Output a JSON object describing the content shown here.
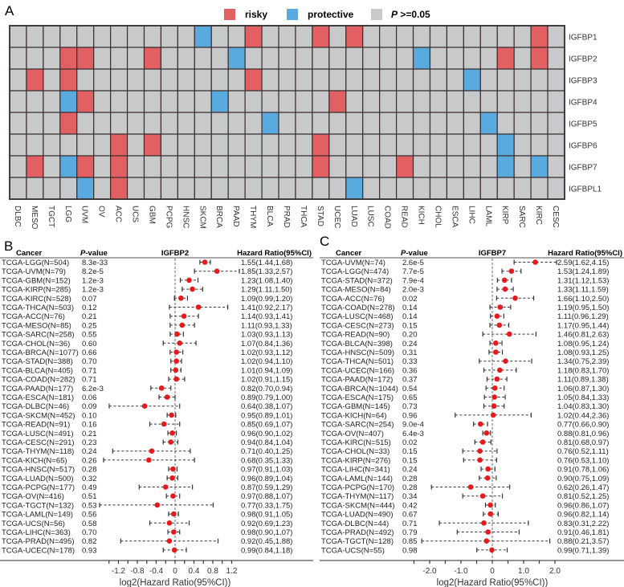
{
  "panel_labels": {
    "a": "A",
    "b": "B",
    "c": "C"
  },
  "legend": {
    "risky": "risky",
    "protective": "protective",
    "ns_p": "P",
    "ns_rest": " >=0.05"
  },
  "colors": {
    "risky": "#e36062",
    "protective": "#58aadf",
    "ns": "#c8c9cb",
    "grid": "#3a3030",
    "dot": "#e8191c"
  },
  "chart_data": [
    {
      "type": "heatmap",
      "columns": [
        "DLBC",
        "MESO",
        "TGCT",
        "LGG",
        "UVM",
        "OV",
        "ACC",
        "UCS",
        "GBM",
        "PCPG",
        "HNSC",
        "SKCM",
        "BRCA",
        "PAAD",
        "THYM",
        "BLCA",
        "PRAD",
        "THCA",
        "STAD",
        "UCEC",
        "LUAD",
        "LUSC",
        "COAD",
        "READ",
        "KICH",
        "CHOL",
        "ESCA",
        "LIHC",
        "LAML",
        "KIRP",
        "SARC",
        "KIRC",
        "CESC"
      ],
      "rows": [
        {
          "gene": "IGFBP1",
          "risky": [
            "THYM",
            "STAD",
            "LUAD",
            "KIRC"
          ],
          "protective": [
            "SKCM"
          ]
        },
        {
          "gene": "IGFBP2",
          "risky": [
            "LGG",
            "UVM",
            "GBM",
            "KIRP",
            "KIRC"
          ],
          "protective": [
            "PAAD",
            "KICH"
          ]
        },
        {
          "gene": "IGFBP3",
          "risky": [
            "MESO",
            "LGG",
            "THYM"
          ],
          "protective": [
            "LIHC"
          ]
        },
        {
          "gene": "IGFBP4",
          "risky": [
            "UVM",
            "UCEC"
          ],
          "protective": [
            "LGG",
            "BRCA"
          ]
        },
        {
          "gene": "IGFBP5",
          "risky": [
            "LGG"
          ],
          "protective": [
            "BLCA",
            "LAML"
          ]
        },
        {
          "gene": "IGFBP6",
          "risky": [
            "ACC",
            "GBM",
            "STAD"
          ],
          "protective": [
            "KIRP"
          ]
        },
        {
          "gene": "IGFBP7",
          "risky": [
            "MESO",
            "UVM",
            "ACC",
            "STAD",
            "READ"
          ],
          "protective": [
            "LGG",
            "KIRP",
            "KIRC"
          ]
        },
        {
          "gene": "IGFBPL1",
          "risky": [
            "ACC"
          ],
          "protective": [
            "UVM",
            "LUAD"
          ]
        }
      ]
    },
    {
      "type": "forest",
      "title": "IGFBP2",
      "headers": {
        "cancer": "Cancer",
        "p_italic": "P",
        "p_rest": "-value",
        "hr": "Hazard Ratio(95%CI)"
      },
      "xlabel": "log2(Hazard Ratio(95%CI))",
      "xticks": [
        "-1.2",
        "-0.8",
        "-0.4",
        "0",
        "0.4",
        "0.8",
        "1.2"
      ],
      "rows": [
        {
          "cancer": "TCGA-LGG(N=504)",
          "p": "8.3e-33",
          "hr": 1.55,
          "lo": 1.44,
          "hi": 1.68,
          "hr_text": "1.55(1.44,1.68)"
        },
        {
          "cancer": "TCGA-UVM(N=79)",
          "p": "8.2e-5",
          "hr": 1.85,
          "lo": 1.33,
          "hi": 2.57,
          "hr_text": "1.85(1.33,2.57)"
        },
        {
          "cancer": "TCGA-GBM(N=152)",
          "p": "1.2e-3",
          "hr": 1.23,
          "lo": 1.08,
          "hi": 1.4,
          "hr_text": "1.23(1.08,1.40)"
        },
        {
          "cancer": "TCGA-KIRP(N=285)",
          "p": "1.2e-3",
          "hr": 1.29,
          "lo": 1.11,
          "hi": 1.5,
          "hr_text": "1.29(1.11,1.50)"
        },
        {
          "cancer": "TCGA-KIRC(N=528)",
          "p": "0.07",
          "hr": 1.09,
          "lo": 0.99,
          "hi": 1.2,
          "hr_text": "1.09(0.99,1.20)"
        },
        {
          "cancer": "TCGA-THCA(N=503)",
          "p": "0.12",
          "hr": 1.41,
          "lo": 0.92,
          "hi": 2.17,
          "hr_text": "1.41(0.92,2.17)"
        },
        {
          "cancer": "TCGA-ACC(N=76)",
          "p": "0.21",
          "hr": 1.14,
          "lo": 0.93,
          "hi": 1.41,
          "hr_text": "1.14(0.93,1.41)"
        },
        {
          "cancer": "TCGA-MESO(N=85)",
          "p": "0.25",
          "hr": 1.11,
          "lo": 0.93,
          "hi": 1.33,
          "hr_text": "1.11(0.93,1.33)"
        },
        {
          "cancer": "TCGA-SARC(N=258)",
          "p": "0.55",
          "hr": 1.03,
          "lo": 0.93,
          "hi": 1.13,
          "hr_text": "1.03(0.93,1.13)"
        },
        {
          "cancer": "TCGA-CHOL(N=36)",
          "p": "0.60",
          "hr": 1.07,
          "lo": 0.84,
          "hi": 1.36,
          "hr_text": "1.07(0.84,1.36)"
        },
        {
          "cancer": "TCGA-BRCA(N=1077)",
          "p": "0.66",
          "hr": 1.02,
          "lo": 0.93,
          "hi": 1.12,
          "hr_text": "1.02(0.93,1.12)"
        },
        {
          "cancer": "TCGA-STAD(N=388)",
          "p": "0.70",
          "hr": 1.02,
          "lo": 0.94,
          "hi": 1.1,
          "hr_text": "1.02(0.94,1.10)"
        },
        {
          "cancer": "TCGA-BLCA(N=405)",
          "p": "0.71",
          "hr": 1.01,
          "lo": 0.94,
          "hi": 1.09,
          "hr_text": "1.01(0.94,1.09)"
        },
        {
          "cancer": "TCGA-COAD(N=282)",
          "p": "0.71",
          "hr": 1.02,
          "lo": 0.91,
          "hi": 1.15,
          "hr_text": "1.02(0.91,1.15)"
        },
        {
          "cancer": "TCGA-PAAD(N=177)",
          "p": "6.2e-3",
          "hr": 0.82,
          "lo": 0.7,
          "hi": 0.94,
          "hr_text": "0.82(0.70,0.94)"
        },
        {
          "cancer": "TCGA-ESCA(N=181)",
          "p": "0.06",
          "hr": 0.89,
          "lo": 0.79,
          "hi": 1.0,
          "hr_text": "0.89(0.79,1.00)"
        },
        {
          "cancer": "TCGA-DLBC(N=46)",
          "p": "0.09",
          "hr": 0.64,
          "lo": 0.38,
          "hi": 1.07,
          "hr_text": "0.64(0.38,1.07)"
        },
        {
          "cancer": "TCGA-SKCM(N=452)",
          "p": "0.10",
          "hr": 0.95,
          "lo": 0.89,
          "hi": 1.01,
          "hr_text": "0.95(0.89,1.01)"
        },
        {
          "cancer": "TCGA-READ(N=91)",
          "p": "0.16",
          "hr": 0.85,
          "lo": 0.69,
          "hi": 1.07,
          "hr_text": "0.85(0.69,1.07)"
        },
        {
          "cancer": "TCGA-LUSC(N=491)",
          "p": "0.21",
          "hr": 0.96,
          "lo": 0.9,
          "hi": 1.02,
          "hr_text": "0.96(0.90,1.02)"
        },
        {
          "cancer": "TCGA-CESC(N=291)",
          "p": "0.23",
          "hr": 0.94,
          "lo": 0.84,
          "hi": 1.04,
          "hr_text": "0.94(0.84,1.04)"
        },
        {
          "cancer": "TCGA-THYM(N=118)",
          "p": "0.24",
          "hr": 0.71,
          "lo": 0.4,
          "hi": 1.25,
          "hr_text": "0.71(0.40,1.25)"
        },
        {
          "cancer": "TCGA-KICH(N=65)",
          "p": "0.26",
          "hr": 0.68,
          "lo": 0.35,
          "hi": 1.33,
          "hr_text": "0.68(0.35,1.33)"
        },
        {
          "cancer": "TCGA-HNSC(N=517)",
          "p": "0.28",
          "hr": 0.97,
          "lo": 0.91,
          "hi": 1.03,
          "hr_text": "0.97(0.91,1.03)"
        },
        {
          "cancer": "TCGA-LUAD(N=500)",
          "p": "0.32",
          "hr": 0.96,
          "lo": 0.89,
          "hi": 1.04,
          "hr_text": "0.96(0.89,1.04)"
        },
        {
          "cancer": "TCGA-PCPG(N=177)",
          "p": "0.49",
          "hr": 0.87,
          "lo": 0.59,
          "hi": 1.29,
          "hr_text": "0.87(0.59,1.29)"
        },
        {
          "cancer": "TCGA-OV(N=416)",
          "p": "0.51",
          "hr": 0.97,
          "lo": 0.88,
          "hi": 1.07,
          "hr_text": "0.97(0.88,1.07)"
        },
        {
          "cancer": "TCGA-TGCT(N=132)",
          "p": "0.53",
          "hr": 0.77,
          "lo": 0.33,
          "hi": 1.75,
          "hr_text": "0.77(0.33,1.75)"
        },
        {
          "cancer": "TCGA-LAML(N=149)",
          "p": "0.56",
          "hr": 0.98,
          "lo": 0.91,
          "hi": 1.05,
          "hr_text": "0.98(0.91,1.05)"
        },
        {
          "cancer": "TCGA-UCS(N=56)",
          "p": "0.58",
          "hr": 0.92,
          "lo": 0.69,
          "hi": 1.23,
          "hr_text": "0.92(0.69,1.23)"
        },
        {
          "cancer": "TCGA-LIHC(N=363)",
          "p": "0.70",
          "hr": 0.98,
          "lo": 0.9,
          "hi": 1.07,
          "hr_text": "0.98(0.90,1.07)"
        },
        {
          "cancer": "TCGA-PRAD(N=495)",
          "p": "0.82",
          "hr": 0.92,
          "lo": 0.45,
          "hi": 1.88,
          "hr_text": "0.92(0.45,1.88)"
        },
        {
          "cancer": "TCGA-UCEC(N=178)",
          "p": "0.93",
          "hr": 0.99,
          "lo": 0.84,
          "hi": 1.18,
          "hr_text": "0.99(0.84,1.18)"
        }
      ]
    },
    {
      "type": "forest",
      "title": "IGFBP7",
      "headers": {
        "cancer": "Cancer",
        "p_italic": "P",
        "p_rest": "-value",
        "hr": "Hazard Ratio(95%CI)"
      },
      "xlabel": "log2(Hazard Ratio(95%CI))",
      "xticks": [
        "-2.0",
        "-1.0",
        "0",
        "1.0",
        "2.0"
      ],
      "rows": [
        {
          "cancer": "TCGA-UVM(N=74)",
          "p": "2.6e-5",
          "hr": 2.59,
          "lo": 1.62,
          "hi": 4.15,
          "hr_text": "2.59(1.62,4.15)"
        },
        {
          "cancer": "TCGA-LGG(N=474)",
          "p": "7.7e-5",
          "hr": 1.53,
          "lo": 1.24,
          "hi": 1.89,
          "hr_text": "1.53(1.24,1.89)"
        },
        {
          "cancer": "TCGA-STAD(N=372)",
          "p": "7.9e-4",
          "hr": 1.31,
          "lo": 1.12,
          "hi": 1.53,
          "hr_text": "1.31(1.12,1.53)"
        },
        {
          "cancer": "TCGA-MESO(N=84)",
          "p": "2.0e-3",
          "hr": 1.33,
          "lo": 1.11,
          "hi": 1.59,
          "hr_text": "1.33(1.11,1.59)"
        },
        {
          "cancer": "TCGA-ACC(N=76)",
          "p": "0.02",
          "hr": 1.66,
          "lo": 1.1,
          "hi": 2.5,
          "hr_text": "1.66(1.10,2.50)"
        },
        {
          "cancer": "TCGA-COAD(N=278)",
          "p": "0.14",
          "hr": 1.19,
          "lo": 0.95,
          "hi": 1.5,
          "hr_text": "1.19(0.95,1.50)"
        },
        {
          "cancer": "TCGA-LUSC(N=468)",
          "p": "0.14",
          "hr": 1.11,
          "lo": 0.96,
          "hi": 1.29,
          "hr_text": "1.11(0.96,1.29)"
        },
        {
          "cancer": "TCGA-CESC(N=273)",
          "p": "0.15",
          "hr": 1.17,
          "lo": 0.95,
          "hi": 1.44,
          "hr_text": "1.17(0.95,1.44)"
        },
        {
          "cancer": "TCGA-READ(N=90)",
          "p": "0.20",
          "hr": 1.46,
          "lo": 0.81,
          "hi": 2.63,
          "hr_text": "1.46(0.81,2.63)"
        },
        {
          "cancer": "TCGA-BLCA(N=398)",
          "p": "0.24",
          "hr": 1.08,
          "lo": 0.95,
          "hi": 1.24,
          "hr_text": "1.08(0.95,1.24)"
        },
        {
          "cancer": "TCGA-HNSC(N=509)",
          "p": "0.31",
          "hr": 1.08,
          "lo": 0.93,
          "hi": 1.25,
          "hr_text": "1.08(0.93,1.25)"
        },
        {
          "cancer": "TCGA-THCA(N=501)",
          "p": "0.33",
          "hr": 1.34,
          "lo": 0.75,
          "hi": 2.39,
          "hr_text": "1.34(0.75,2.39)"
        },
        {
          "cancer": "TCGA-UCEC(N=166)",
          "p": "0.36",
          "hr": 1.18,
          "lo": 0.83,
          "hi": 1.7,
          "hr_text": "1.18(0.83,1.70)"
        },
        {
          "cancer": "TCGA-PAAD(N=172)",
          "p": "0.37",
          "hr": 1.11,
          "lo": 0.89,
          "hi": 1.38,
          "hr_text": "1.11(0.89,1.38)"
        },
        {
          "cancer": "TCGA-BRCA(N=1044)",
          "p": "0.54",
          "hr": 1.06,
          "lo": 0.87,
          "hi": 1.3,
          "hr_text": "1.06(0.87,1.30)"
        },
        {
          "cancer": "TCGA-ESCA(N=175)",
          "p": "0.65",
          "hr": 1.05,
          "lo": 0.84,
          "hi": 1.33,
          "hr_text": "1.05(0.84,1.33)"
        },
        {
          "cancer": "TCGA-GBM(N=145)",
          "p": "0.73",
          "hr": 1.04,
          "lo": 0.83,
          "hi": 1.3,
          "hr_text": "1.04(0.83,1.30)"
        },
        {
          "cancer": "TCGA-KICH(N=64)",
          "p": "0.96",
          "hr": 1.02,
          "lo": 0.44,
          "hi": 2.36,
          "hr_text": "1.02(0.44,2.36)"
        },
        {
          "cancer": "TCGA-SARC(N=254)",
          "p": "9.0e-4",
          "hr": 0.77,
          "lo": 0.66,
          "hi": 0.9,
          "hr_text": "0.77(0.66,0.90)"
        },
        {
          "cancer": "TCGA-OV(N=407)",
          "p": "6.4e-3",
          "hr": 0.88,
          "lo": 0.81,
          "hi": 0.96,
          "hr_text": "0.88(0.81,0.96)"
        },
        {
          "cancer": "TCGA-KIRC(N=515)",
          "p": "0.02",
          "hr": 0.81,
          "lo": 0.68,
          "hi": 0.97,
          "hr_text": "0.81(0.68,0.97)"
        },
        {
          "cancer": "TCGA-CHOL(N=33)",
          "p": "0.15",
          "hr": 0.76,
          "lo": 0.52,
          "hi": 1.11,
          "hr_text": "0.76(0.52,1.11)"
        },
        {
          "cancer": "TCGA-KIRP(N=276)",
          "p": "0.15",
          "hr": 0.76,
          "lo": 0.53,
          "hi": 1.1,
          "hr_text": "0.76(0.53,1.10)"
        },
        {
          "cancer": "TCGA-LIHC(N=341)",
          "p": "0.24",
          "hr": 0.91,
          "lo": 0.78,
          "hi": 1.06,
          "hr_text": "0.91(0.78,1.06)"
        },
        {
          "cancer": "TCGA-LAML(N=144)",
          "p": "0.28",
          "hr": 0.9,
          "lo": 0.75,
          "hi": 1.09,
          "hr_text": "0.90(0.75,1.09)"
        },
        {
          "cancer": "TCGA-PCPG(N=170)",
          "p": "0.28",
          "hr": 0.62,
          "lo": 0.26,
          "hi": 1.47,
          "hr_text": "0.62(0.26,1.47)"
        },
        {
          "cancer": "TCGA-THYM(N=117)",
          "p": "0.34",
          "hr": 0.81,
          "lo": 0.52,
          "hi": 1.25,
          "hr_text": "0.81(0.52,1.25)"
        },
        {
          "cancer": "TCGA-SKCM(N=444)",
          "p": "0.42",
          "hr": 0.96,
          "lo": 0.86,
          "hi": 1.07,
          "hr_text": "0.96(0.86,1.07)"
        },
        {
          "cancer": "TCGA-LUAD(N=490)",
          "p": "0.67",
          "hr": 0.96,
          "lo": 0.82,
          "hi": 1.14,
          "hr_text": "0.96(0.82,1.14)"
        },
        {
          "cancer": "TCGA-DLBC(N=44)",
          "p": "0.71",
          "hr": 0.83,
          "lo": 0.31,
          "hi": 2.22,
          "hr_text": "0.83(0.31,2.22)"
        },
        {
          "cancer": "TCGA-PRAD(N=492)",
          "p": "0.79",
          "hr": 0.91,
          "lo": 0.46,
          "hi": 1.81,
          "hr_text": "0.91(0.46,1.81)"
        },
        {
          "cancer": "TCGA-TGCT(N=128)",
          "p": "0.85",
          "hr": 0.88,
          "lo": 0.21,
          "hi": 3.57,
          "hr_text": "0.88(0.21,3.57)"
        },
        {
          "cancer": "TCGA-UCS(N=55)",
          "p": "0.98",
          "hr": 0.99,
          "lo": 0.71,
          "hi": 1.39,
          "hr_text": "0.99(0.71,1.39)"
        }
      ]
    }
  ]
}
